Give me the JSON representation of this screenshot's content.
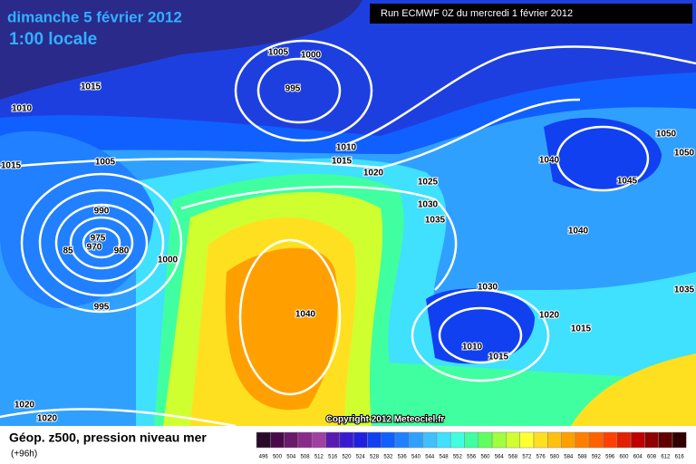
{
  "header": {
    "date": "dimanche 5 février 2012",
    "time": "1:00 locale",
    "run": "Run ECMWF 0Z du mercredi 1 février 2012"
  },
  "isobars": [
    "1005",
    "1000",
    "995",
    "1015",
    "1010",
    "1015",
    "1005",
    "1010",
    "1015",
    "1020",
    "1025",
    "1030",
    "1035",
    "990",
    "975",
    "970",
    "980",
    "85",
    "1000",
    "995",
    "1040",
    "1040",
    "1045",
    "1050",
    "1050",
    "1040",
    "1030",
    "1020",
    "1015",
    "1010",
    "1015",
    "1035",
    "1020",
    "1020"
  ],
  "copyright": "Copyright 2012 Meteociel.fr",
  "footer": {
    "title": "Géop. z500, pression niveau mer",
    "lead": "(+96h)"
  },
  "scale": {
    "labels": [
      "496",
      "500",
      "504",
      "508",
      "512",
      "516",
      "520",
      "524",
      "528",
      "532",
      "536",
      "540",
      "544",
      "548",
      "552",
      "556",
      "560",
      "564",
      "568",
      "572",
      "576",
      "580",
      "584",
      "588",
      "592",
      "596",
      "600",
      "604",
      "608",
      "612",
      "616"
    ],
    "colors": [
      "#2a0a2a",
      "#4a0a4a",
      "#6a1a6a",
      "#8a2a8a",
      "#a040a0",
      "#5a1ab0",
      "#3a1ad0",
      "#2020e0",
      "#1040f0",
      "#1060ff",
      "#2080ff",
      "#30a0ff",
      "#40c0ff",
      "#40e0ff",
      "#40ffe0",
      "#40ffa0",
      "#60ff60",
      "#a0ff40",
      "#d0ff30",
      "#ffff30",
      "#ffe020",
      "#ffc010",
      "#ffa000",
      "#ff8000",
      "#ff6000",
      "#ff4000",
      "#e02000",
      "#c00000",
      "#900000",
      "#600000",
      "#300000"
    ]
  }
}
